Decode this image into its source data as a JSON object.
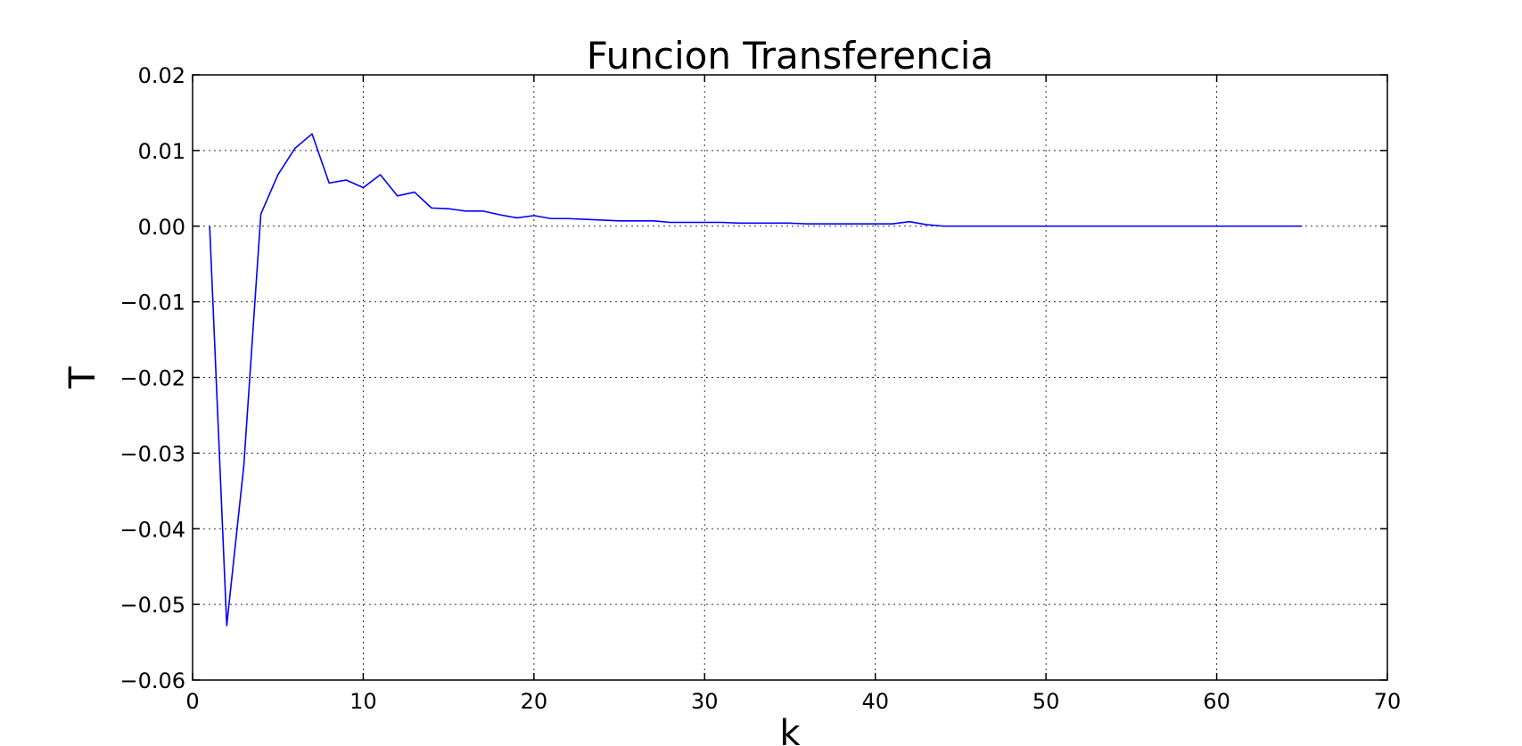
{
  "chart_data": {
    "type": "line",
    "title": "Funcion Transferencia",
    "xlabel": "k",
    "ylabel": "T",
    "xlim": [
      0,
      70
    ],
    "ylim": [
      -0.06,
      0.02
    ],
    "xticks": [
      0,
      10,
      20,
      30,
      40,
      50,
      60,
      70
    ],
    "yticks": [
      0.02,
      0.01,
      0.0,
      -0.01,
      -0.02,
      -0.03,
      -0.04,
      -0.05,
      -0.06
    ],
    "xtick_labels": [
      "0",
      "10",
      "20",
      "30",
      "40",
      "50",
      "60",
      "70"
    ],
    "ytick_labels": [
      "0.02",
      "0.01",
      "0.00",
      "−0.01",
      "−0.02",
      "−0.03",
      "−0.04",
      "−0.05",
      "−0.06"
    ],
    "grid": true,
    "line_color": "#0000ff",
    "series": [
      {
        "x": [
          1,
          2,
          3,
          4,
          5,
          6,
          7,
          8,
          9,
          10,
          11,
          12,
          13,
          14,
          15,
          16,
          17,
          18,
          19,
          20,
          21,
          22,
          23,
          24,
          25,
          26,
          27,
          28,
          29,
          30,
          31,
          32,
          33,
          34,
          35,
          36,
          37,
          38,
          39,
          40,
          41,
          42,
          43,
          44,
          45,
          46,
          47,
          48,
          49,
          50,
          51,
          52,
          53,
          54,
          55,
          56,
          57,
          58,
          59,
          60,
          61,
          62,
          63,
          64,
          65
        ],
        "y": [
          0.0,
          -0.0528,
          -0.0317,
          0.0016,
          0.0068,
          0.0103,
          0.0122,
          0.0057,
          0.0061,
          0.0051,
          0.0068,
          0.004,
          0.0045,
          0.0024,
          0.0023,
          0.002,
          0.002,
          0.0015,
          0.0011,
          0.0014,
          0.001,
          0.001,
          0.0009,
          0.0008,
          0.0007,
          0.0007,
          0.0007,
          0.0005,
          0.0005,
          0.0005,
          0.0005,
          0.0004,
          0.0004,
          0.0004,
          0.0004,
          0.0003,
          0.0003,
          0.0003,
          0.0003,
          0.0003,
          0.0003,
          0.0006,
          0.0002,
          0.0,
          0.0,
          0.0,
          0.0,
          0.0,
          0.0,
          0.0,
          0.0,
          0.0,
          0.0,
          0.0,
          0.0,
          0.0,
          0.0,
          0.0,
          0.0,
          0.0,
          0.0,
          0.0,
          0.0,
          0.0,
          0.0
        ]
      }
    ]
  }
}
